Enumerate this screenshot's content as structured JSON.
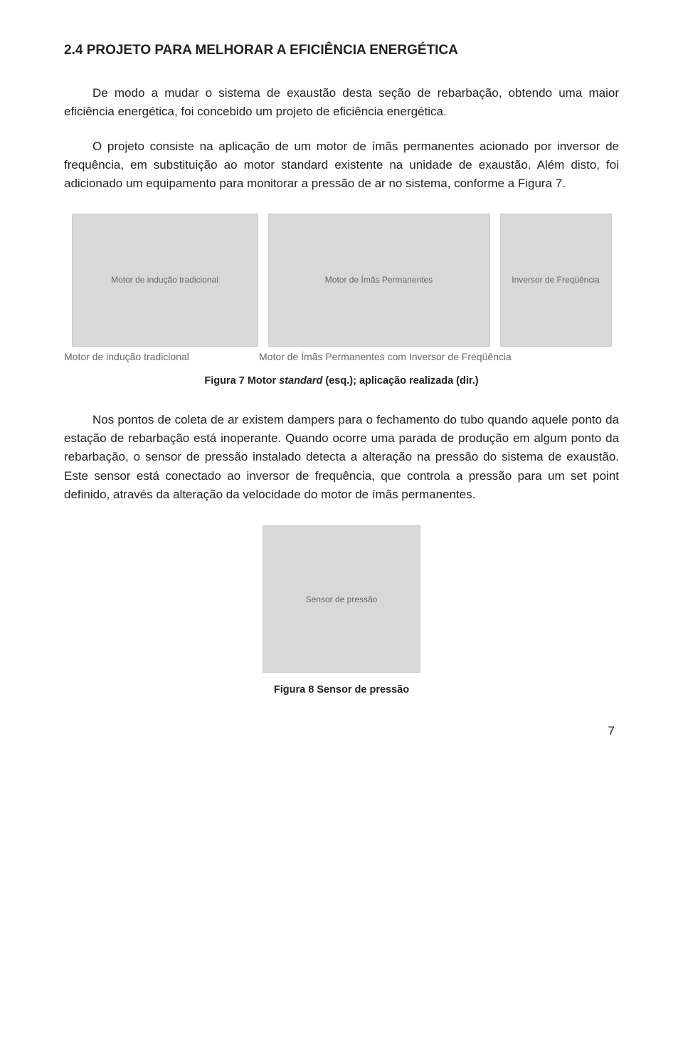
{
  "heading": "2.4  PROJETO PARA MELHORAR A EFICIÊNCIA ENERGÉTICA",
  "para1": "De modo a mudar o sistema de exaustão desta seção de rebarbação, obtendo uma maior eficiência energética, foi concebido um projeto de eficiência energética.",
  "para2": "O projeto consiste na aplicação de um motor de ímãs permanentes acionado por inversor de frequência, em substituição ao motor standard existente na unidade de exaustão. Além disto, foi adicionado um equipamento para monitorar a pressão de ar no sistema, conforme a Figura 7.",
  "fig1": {
    "imgA_alt": "Motor de indução tradicional",
    "imgB_alt": "Motor de Ímãs Permanentes",
    "imgC_alt": "Inversor de Freqüência",
    "subcap_a": "Motor de indução tradicional",
    "subcap_b": "Motor de Ímãs Permanentes com Inversor de Freqüência"
  },
  "fig1_caption_a": "Figura 7 Motor ",
  "fig1_caption_b": "standard",
  "fig1_caption_c": " (esq.); aplicação realizada (dir.)",
  "para3": "Nos pontos de coleta de ar existem dampers para o fechamento do tubo quando aquele ponto da estação de rebarbação está inoperante. Quando ocorre uma parada de produção em algum ponto da rebarbação, o sensor de pressão instalado detecta a alteração na pressão do sistema de exaustão. Este sensor está conectado ao inversor de frequência, que controla a pressão para um set point definido, através da alteração da velocidade do motor de ímãs permanentes.",
  "fig2": {
    "img_alt": "Sensor de pressão"
  },
  "fig2_caption": "Figura 8 Sensor de pressão",
  "page_number": "7"
}
